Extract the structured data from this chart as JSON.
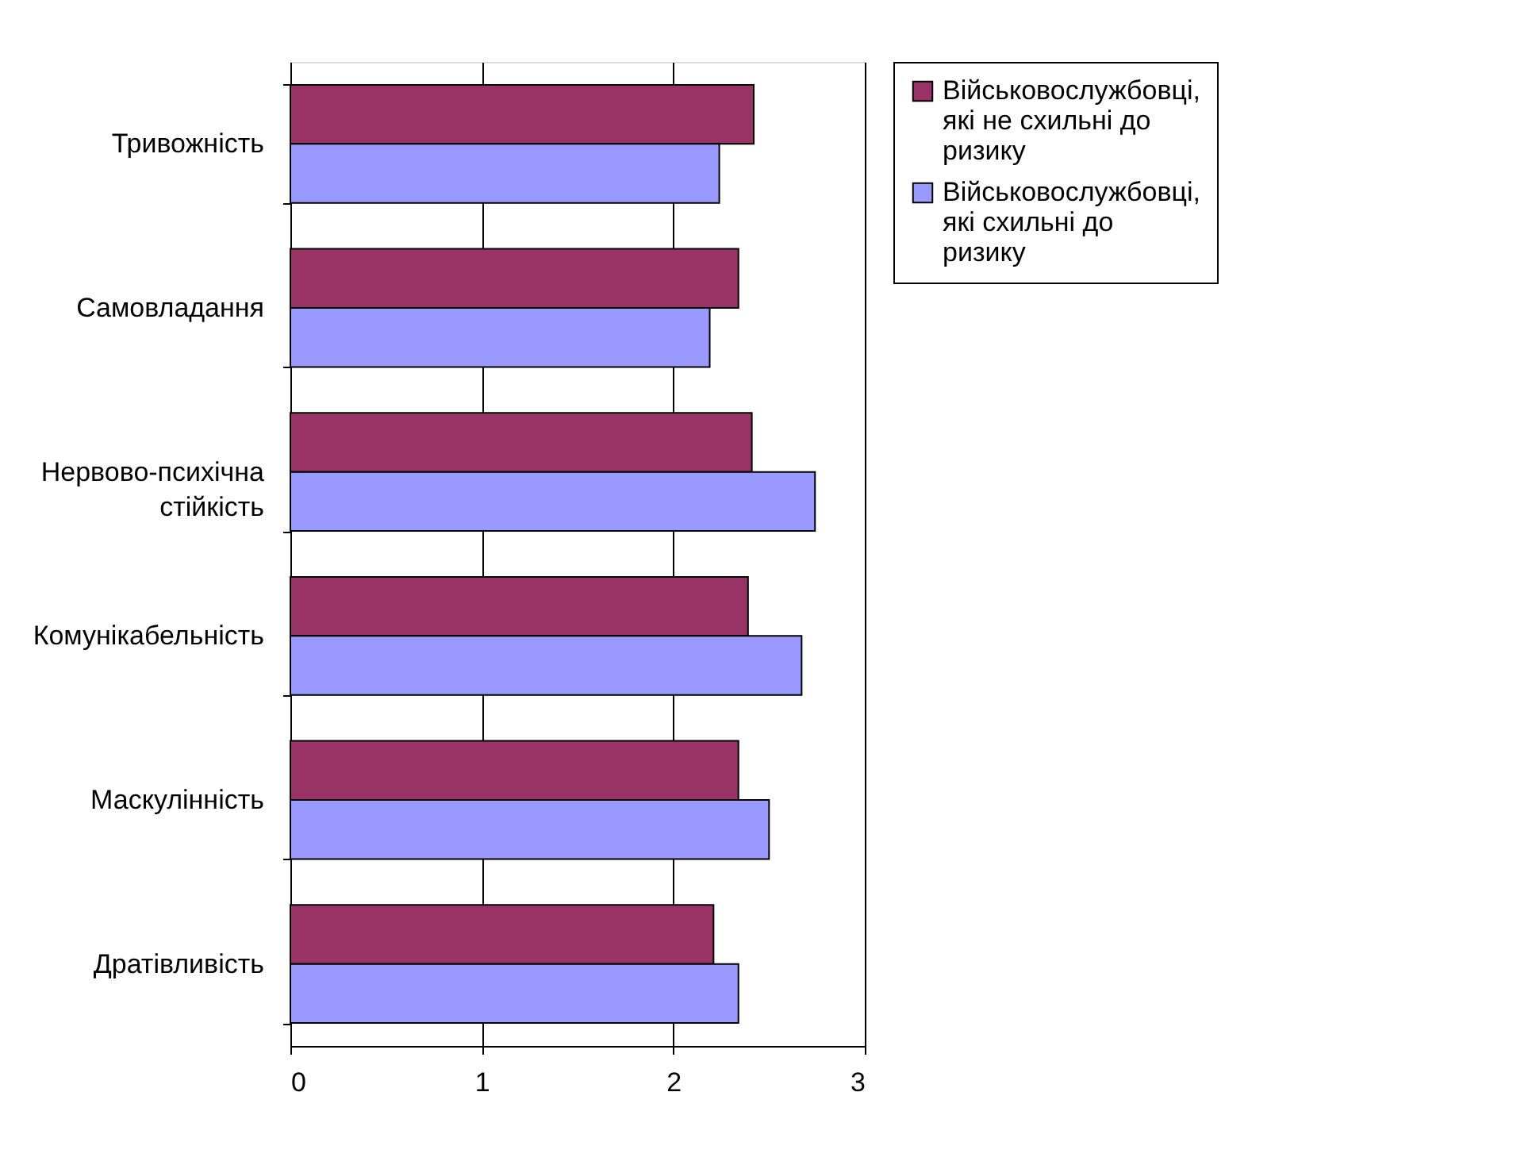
{
  "chart_data": {
    "type": "bar",
    "orientation": "horizontal",
    "categories": [
      "Тривожність",
      "Самовладання",
      "Нервово-психічна стійкість",
      "Комунікабельність",
      "Маскулінність",
      "Дратівливість"
    ],
    "series": [
      {
        "name": "Військовослужбовці, які не схильні до ризику",
        "color": "#993366",
        "values": [
          2.42,
          2.34,
          2.41,
          2.39,
          2.34,
          2.21
        ]
      },
      {
        "name": "Військовослужбовці, які схильні до ризику",
        "color": "#9999ff",
        "values": [
          2.24,
          2.19,
          2.74,
          2.67,
          2.5,
          2.34
        ]
      }
    ],
    "xlim": [
      0,
      3
    ],
    "xticks": [
      0,
      1,
      2,
      3
    ],
    "grid": "x",
    "legend": "right"
  }
}
